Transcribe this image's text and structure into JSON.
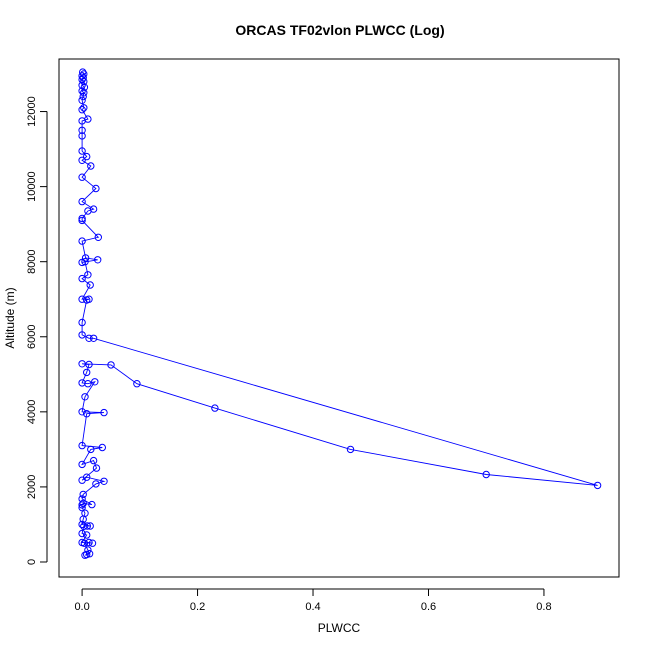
{
  "chart_data": {
    "type": "line",
    "title": "ORCAS TF02vlon PLWCC (Log)",
    "xlabel": "PLWCC",
    "ylabel": "Altitude (m)",
    "xlim": [
      -0.04,
      0.93
    ],
    "ylim": [
      -400,
      13400
    ],
    "xticks": [
      0,
      0.2,
      0.4,
      0.6,
      0.8
    ],
    "xtick_labels": [
      "0.0",
      "0.2",
      "0.4",
      "0.6",
      "0.8"
    ],
    "yticks": [
      0,
      2000,
      4000,
      6000,
      8000,
      10000,
      12000
    ],
    "ytick_labels": [
      "0",
      "2000",
      "4000",
      "6000",
      "8000",
      "10000",
      "12000"
    ],
    "grid": false,
    "marker": "open-circle",
    "color": "#0000ff",
    "series": [
      {
        "values": [
          [
            0.008,
            200
          ],
          [
            0.005,
            180
          ],
          [
            0.013,
            220
          ],
          [
            0.01,
            320
          ],
          [
            0.004,
            500
          ],
          [
            0.012,
            520
          ],
          [
            0.018,
            500
          ],
          [
            0.0,
            520
          ],
          [
            0.008,
            720
          ],
          [
            0.0,
            760
          ],
          [
            0.003,
            950
          ],
          [
            0.009,
            960
          ],
          [
            0.014,
            960
          ],
          [
            0.0,
            1000
          ],
          [
            0.002,
            1140
          ],
          [
            0.005,
            1300
          ],
          [
            0.0,
            1450
          ],
          [
            0.0,
            1520
          ],
          [
            0.002,
            1560
          ],
          [
            0.017,
            1530
          ],
          [
            0.0,
            1680
          ],
          [
            0.002,
            1800
          ],
          [
            0.024,
            2080
          ],
          [
            0.038,
            2150
          ],
          [
            0.008,
            2260
          ],
          [
            0.0,
            2180
          ],
          [
            0.025,
            2500
          ],
          [
            0.02,
            2700
          ],
          [
            0.0,
            2600
          ],
          [
            0.015,
            3000
          ],
          [
            0.035,
            3050
          ],
          [
            0.0,
            3100
          ],
          [
            0.008,
            3950
          ],
          [
            0.038,
            3980
          ],
          [
            0.0,
            4000
          ],
          [
            0.005,
            4400
          ],
          [
            0.022,
            4800
          ],
          [
            0.01,
            4750
          ],
          [
            0.0,
            4770
          ],
          [
            0.008,
            5050
          ],
          [
            0.012,
            5260
          ],
          [
            0.0,
            5280
          ],
          [
            0.05,
            5250
          ],
          [
            0.095,
            4750
          ],
          [
            0.23,
            4100
          ],
          [
            0.465,
            3000
          ],
          [
            0.7,
            2330
          ],
          [
            0.893,
            2040
          ],
          [
            0.02,
            5960
          ],
          [
            0.012,
            5960
          ],
          [
            0.0,
            6050
          ],
          [
            0.0,
            6380
          ],
          [
            0.008,
            6980
          ],
          [
            0.012,
            7000
          ],
          [
            0.0,
            7000
          ],
          [
            0.014,
            7380
          ],
          [
            0.0,
            7550
          ],
          [
            0.01,
            7650
          ],
          [
            0.005,
            8000
          ],
          [
            0.0,
            7980
          ],
          [
            0.027,
            8050
          ],
          [
            0.006,
            8100
          ],
          [
            0.0,
            8550
          ],
          [
            0.028,
            8650
          ],
          [
            0.0,
            9100
          ],
          [
            0.0,
            9150
          ],
          [
            0.01,
            9350
          ],
          [
            0.02,
            9400
          ],
          [
            0.0,
            9600
          ],
          [
            0.024,
            9950
          ],
          [
            0.0,
            10250
          ],
          [
            0.015,
            10550
          ],
          [
            0.0,
            10700
          ],
          [
            0.008,
            10800
          ],
          [
            0.0,
            10950
          ],
          [
            0.0,
            11350
          ],
          [
            0.0,
            11500
          ],
          [
            0.0,
            11750
          ],
          [
            0.01,
            11800
          ],
          [
            0.0,
            12050
          ],
          [
            0.003,
            12100
          ],
          [
            0.0,
            12300
          ],
          [
            0.002,
            12400
          ],
          [
            0.003,
            12500
          ],
          [
            0.0,
            12550
          ],
          [
            0.004,
            12650
          ],
          [
            0.0,
            12700
          ],
          [
            0.003,
            12800
          ],
          [
            0.0,
            12850
          ],
          [
            0.002,
            12900
          ],
          [
            0.0,
            12950
          ],
          [
            0.003,
            13000
          ],
          [
            0.001,
            13050
          ]
        ]
      }
    ]
  }
}
